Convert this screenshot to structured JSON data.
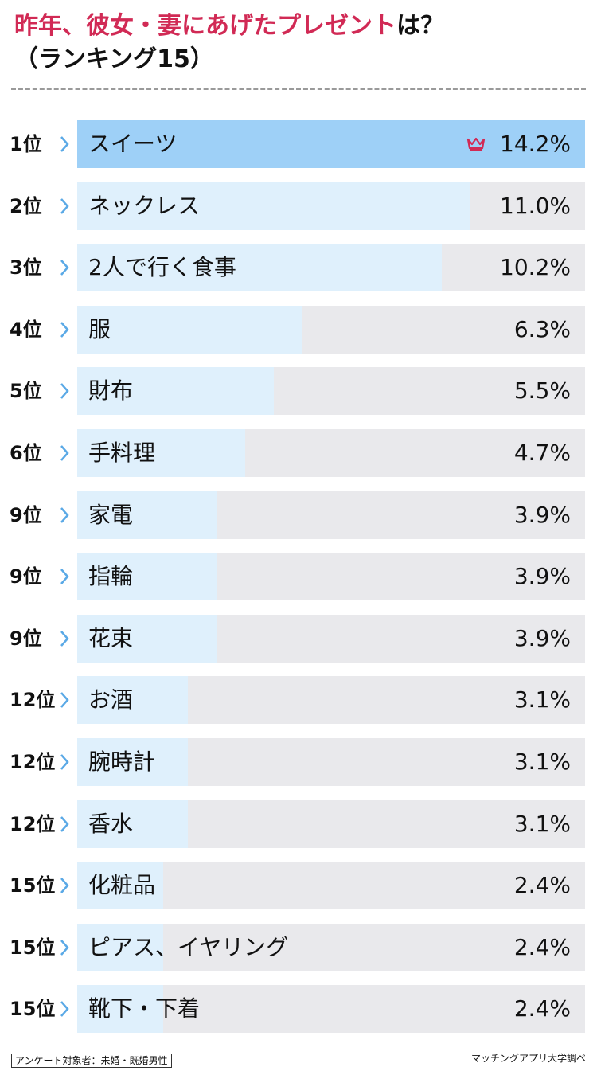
{
  "header": {
    "title_accent": "昨年、彼女・妻にあげたプレゼント",
    "title_rest": "は？",
    "subtitle": "（ランキング15）"
  },
  "colors": {
    "accent": "#d12a55",
    "top_fill": "#9ed0f7",
    "fill": "#dff0fc",
    "track": "#e9e9ec",
    "chevron": "#5aa9e6"
  },
  "chart_data": {
    "type": "bar",
    "orientation": "horizontal",
    "unit": "%",
    "xlim": [
      0,
      14.2
    ],
    "items": [
      {
        "rank": "1位",
        "label": "スイーツ",
        "value": 14.2,
        "value_text": "14.2%"
      },
      {
        "rank": "2位",
        "label": "ネックレス",
        "value": 11.0,
        "value_text": "11.0%"
      },
      {
        "rank": "3位",
        "label": "2人で行く食事",
        "value": 10.2,
        "value_text": "10.2%"
      },
      {
        "rank": "4位",
        "label": "服",
        "value": 6.3,
        "value_text": "6.3%"
      },
      {
        "rank": "5位",
        "label": "財布",
        "value": 5.5,
        "value_text": "5.5%"
      },
      {
        "rank": "6位",
        "label": "手料理",
        "value": 4.7,
        "value_text": "4.7%"
      },
      {
        "rank": "9位",
        "label": "家電",
        "value": 3.9,
        "value_text": "3.9%"
      },
      {
        "rank": "9位",
        "label": "指輪",
        "value": 3.9,
        "value_text": "3.9%"
      },
      {
        "rank": "9位",
        "label": "花束",
        "value": 3.9,
        "value_text": "3.9%"
      },
      {
        "rank": "12位",
        "label": "お酒",
        "value": 3.1,
        "value_text": "3.1%"
      },
      {
        "rank": "12位",
        "label": "腕時計",
        "value": 3.1,
        "value_text": "3.1%"
      },
      {
        "rank": "12位",
        "label": "香水",
        "value": 3.1,
        "value_text": "3.1%"
      },
      {
        "rank": "15位",
        "label": "化粧品",
        "value": 2.4,
        "value_text": "2.4%"
      },
      {
        "rank": "15位",
        "label": "ピアス、イヤリング",
        "value": 2.4,
        "value_text": "2.4%"
      },
      {
        "rank": "15位",
        "label": "靴下・下着",
        "value": 2.4,
        "value_text": "2.4%"
      }
    ]
  },
  "top_item_icon": "crown-icon",
  "footer": {
    "survey_note": "アンケート対象者：未婚・既婚男性",
    "source": "マッチングアプリ大学調べ"
  }
}
